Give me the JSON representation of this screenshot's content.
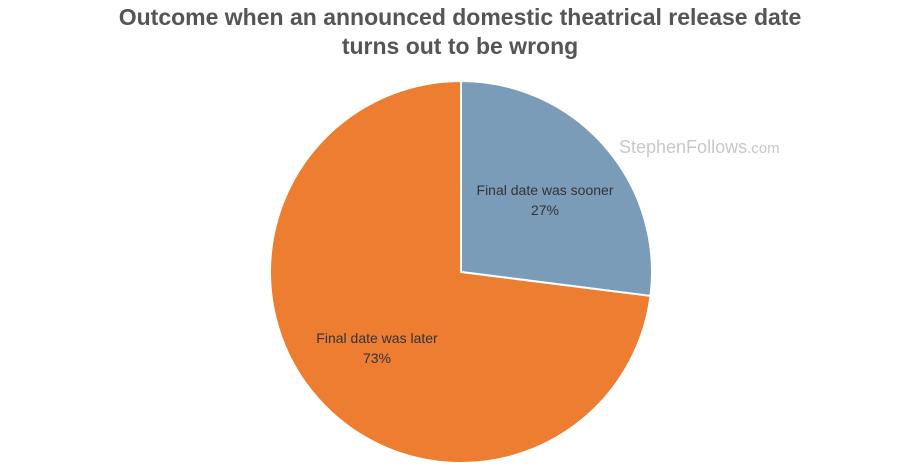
{
  "chart_data": {
    "type": "pie",
    "title": "Outcome when an announced domestic theatrical release date turns out to be wrong",
    "slices": [
      {
        "label": "Final date was sooner",
        "value": 27,
        "value_label": "27%",
        "color": "#7a9cb8"
      },
      {
        "label": "Final date was later",
        "value": 73,
        "value_label": "73%",
        "color": "#ed7d31"
      }
    ],
    "start_angle_deg": 0,
    "direction": "clockwise",
    "legend": "none"
  },
  "watermark": {
    "name": "StephenFollows",
    "domain": ".com"
  }
}
